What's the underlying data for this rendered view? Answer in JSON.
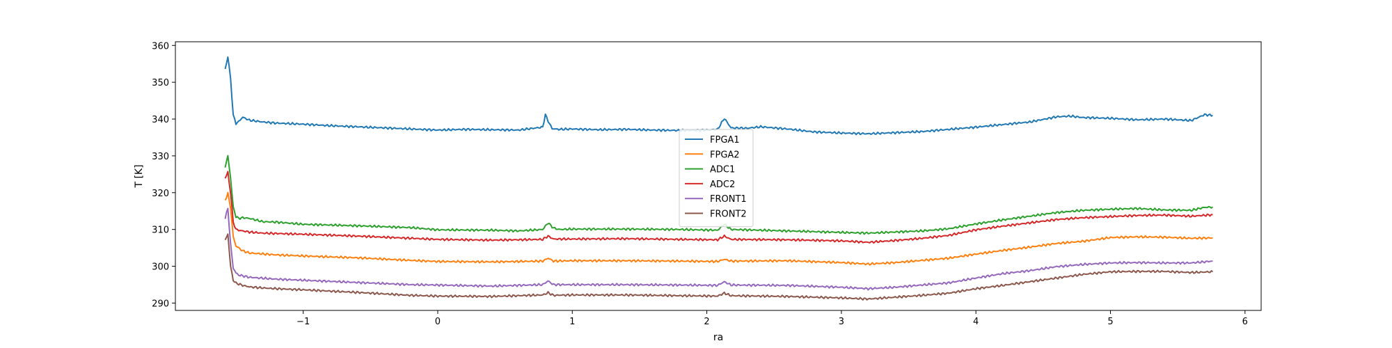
{
  "chart_data": {
    "type": "line",
    "xlabel": "ra",
    "ylabel": "T [K]",
    "xlim": [
      -1.95,
      6.12
    ],
    "ylim": [
      288,
      361
    ],
    "xticks": [
      -1,
      0,
      1,
      2,
      3,
      4,
      5,
      6
    ],
    "xtick_labels": [
      "−1",
      "0",
      "1",
      "2",
      "3",
      "4",
      "5",
      "6"
    ],
    "yticks": [
      290,
      300,
      310,
      320,
      330,
      340,
      350,
      360
    ],
    "ytick_labels": [
      "290",
      "300",
      "310",
      "320",
      "330",
      "340",
      "350",
      "360"
    ],
    "grid": false,
    "legend_position": "center",
    "series": [
      {
        "name": "FPGA1",
        "color": "#1f77b4",
        "x": [
          -1.58,
          -1.56,
          -1.54,
          -1.52,
          -1.5,
          -1.48,
          -1.45,
          -1.4,
          -1.3,
          -1.2,
          -1.0,
          -0.8,
          -0.6,
          -0.4,
          -0.2,
          0.0,
          0.2,
          0.4,
          0.6,
          0.78,
          0.8,
          0.82,
          0.85,
          0.9,
          1.0,
          1.2,
          1.4,
          1.6,
          1.8,
          2.0,
          2.08,
          2.13,
          2.18,
          2.3,
          2.4,
          2.6,
          2.8,
          3.0,
          3.2,
          3.4,
          3.6,
          3.8,
          4.0,
          4.2,
          4.4,
          4.6,
          4.7,
          4.8,
          5.0,
          5.2,
          5.4,
          5.6,
          5.7,
          5.76
        ],
        "y": [
          353.5,
          357,
          351,
          341,
          338.8,
          339.3,
          340.5,
          339.7,
          339.2,
          338.9,
          338.6,
          338.2,
          337.9,
          337.6,
          337.3,
          337.0,
          337.2,
          337.1,
          337.0,
          337.8,
          341.2,
          339.5,
          337.4,
          337.2,
          337.3,
          337.1,
          337.2,
          337.0,
          336.9,
          337.0,
          337.2,
          340.2,
          337.6,
          337.5,
          337.9,
          337.3,
          336.5,
          336.2,
          336.0,
          336.3,
          336.6,
          337.2,
          337.8,
          338.5,
          339.2,
          340.6,
          340.8,
          340.4,
          340.2,
          339.8,
          340.0,
          339.6,
          341.2,
          341.0
        ]
      },
      {
        "name": "FPGA2",
        "color": "#ff7f0e",
        "x": [
          -1.58,
          -1.56,
          -1.54,
          -1.52,
          -1.5,
          -1.48,
          -1.45,
          -1.4,
          -1.2,
          -1.0,
          -0.6,
          -0.2,
          0.0,
          0.4,
          0.78,
          0.82,
          0.86,
          1.0,
          1.4,
          1.8,
          2.08,
          2.13,
          2.18,
          2.6,
          3.0,
          3.2,
          3.4,
          3.6,
          3.8,
          4.0,
          4.2,
          4.4,
          4.6,
          4.8,
          5.0,
          5.2,
          5.4,
          5.6,
          5.76
        ],
        "y": [
          318,
          319.8,
          316,
          308,
          305.5,
          305,
          304.2,
          303.6,
          303.1,
          302.8,
          302.3,
          301.6,
          301.3,
          301.2,
          301.4,
          302.2,
          301.4,
          301.5,
          301.5,
          301.4,
          301.3,
          301.9,
          301.4,
          301.5,
          301.0,
          300.6,
          301.0,
          301.6,
          302.2,
          303.3,
          304.3,
          305.2,
          306.2,
          306.8,
          307.8,
          308.0,
          307.9,
          307.6,
          307.7
        ]
      },
      {
        "name": "ADC1",
        "color": "#2ca02c",
        "x": [
          -1.58,
          -1.56,
          -1.54,
          -1.52,
          -1.5,
          -1.48,
          -1.45,
          -1.4,
          -1.3,
          -1.2,
          -1.0,
          -0.6,
          -0.2,
          0.0,
          0.4,
          0.6,
          0.78,
          0.82,
          0.86,
          0.9,
          1.0,
          1.4,
          1.8,
          2.08,
          2.13,
          2.18,
          2.4,
          2.8,
          3.2,
          3.6,
          3.8,
          4.0,
          4.2,
          4.4,
          4.6,
          4.8,
          5.0,
          5.2,
          5.4,
          5.6,
          5.7,
          5.76
        ],
        "y": [
          327,
          330,
          324,
          316,
          313.5,
          313,
          313.2,
          313.0,
          312.1,
          312.0,
          311.4,
          311.0,
          310.5,
          309.9,
          309.8,
          309.6,
          310.0,
          311.8,
          310.4,
          310.0,
          310.1,
          310.1,
          310.0,
          309.8,
          311.4,
          310.0,
          309.8,
          309.4,
          309.0,
          309.6,
          310.2,
          311.5,
          312.6,
          313.6,
          314.6,
          315.2,
          315.5,
          315.7,
          315.3,
          315.2,
          316.0,
          316.1
        ]
      },
      {
        "name": "ADC2",
        "color": "#d62728",
        "x": [
          -1.58,
          -1.56,
          -1.54,
          -1.52,
          -1.5,
          -1.48,
          -1.45,
          -1.4,
          -1.3,
          -1.2,
          -1.0,
          -0.6,
          -0.2,
          0.0,
          0.4,
          0.78,
          0.82,
          0.86,
          1.0,
          1.4,
          1.8,
          2.08,
          2.13,
          2.18,
          2.6,
          3.0,
          3.2,
          3.4,
          3.6,
          3.8,
          4.0,
          4.2,
          4.4,
          4.6,
          4.8,
          5.0,
          5.2,
          5.4,
          5.6,
          5.76
        ],
        "y": [
          324,
          325.5,
          320,
          312,
          310,
          309.8,
          309.6,
          309.3,
          309.0,
          308.9,
          308.7,
          308.2,
          307.6,
          307.3,
          307.1,
          307.3,
          308.2,
          307.4,
          307.4,
          307.5,
          307.3,
          307.2,
          308.2,
          307.3,
          307.2,
          306.9,
          306.5,
          307.0,
          307.6,
          308.4,
          309.9,
          310.9,
          311.8,
          312.7,
          313.2,
          313.5,
          313.8,
          313.9,
          313.6,
          314.0
        ]
      },
      {
        "name": "FRONT1",
        "color": "#9467bd",
        "x": [
          -1.58,
          -1.56,
          -1.54,
          -1.52,
          -1.5,
          -1.48,
          -1.45,
          -1.4,
          -1.2,
          -1.0,
          -0.6,
          -0.2,
          0.0,
          0.4,
          0.78,
          0.82,
          0.86,
          1.0,
          1.4,
          1.8,
          2.08,
          2.13,
          2.18,
          2.6,
          3.0,
          3.2,
          3.4,
          3.6,
          3.8,
          4.0,
          4.2,
          4.4,
          4.6,
          4.8,
          5.0,
          5.2,
          5.4,
          5.6,
          5.76
        ],
        "y": [
          313,
          315.8,
          306,
          299.5,
          298.2,
          297.6,
          297.4,
          297.0,
          296.5,
          296.2,
          295.6,
          295.0,
          294.9,
          294.6,
          295.0,
          296.0,
          295.0,
          295.0,
          295.0,
          294.9,
          294.8,
          295.8,
          294.9,
          294.8,
          294.3,
          293.9,
          294.3,
          294.9,
          295.5,
          296.8,
          298.0,
          298.8,
          299.9,
          300.5,
          300.9,
          301.0,
          300.9,
          300.9,
          301.4
        ]
      },
      {
        "name": "FRONT2",
        "color": "#8c564b",
        "x": [
          -1.58,
          -1.56,
          -1.54,
          -1.52,
          -1.5,
          -1.48,
          -1.45,
          -1.4,
          -1.3,
          -1.2,
          -1.0,
          -0.6,
          -0.2,
          0.0,
          0.4,
          0.78,
          0.82,
          0.86,
          1.0,
          1.4,
          1.8,
          2.08,
          2.13,
          2.18,
          2.6,
          3.0,
          3.2,
          3.4,
          3.6,
          3.8,
          4.0,
          4.2,
          4.4,
          4.6,
          4.8,
          5.0,
          5.2,
          5.4,
          5.6,
          5.76
        ],
        "y": [
          307,
          308.8,
          300,
          296.2,
          295.4,
          295.2,
          294.8,
          294.4,
          294.1,
          293.9,
          293.6,
          292.9,
          292.1,
          291.9,
          291.8,
          292.2,
          292.8,
          292.1,
          292.2,
          292.2,
          292.0,
          291.9,
          292.7,
          292.0,
          291.8,
          291.4,
          291.1,
          291.6,
          292.1,
          292.7,
          293.9,
          294.8,
          295.8,
          296.8,
          297.8,
          298.5,
          298.6,
          298.6,
          298.3,
          298.5
        ]
      }
    ]
  }
}
